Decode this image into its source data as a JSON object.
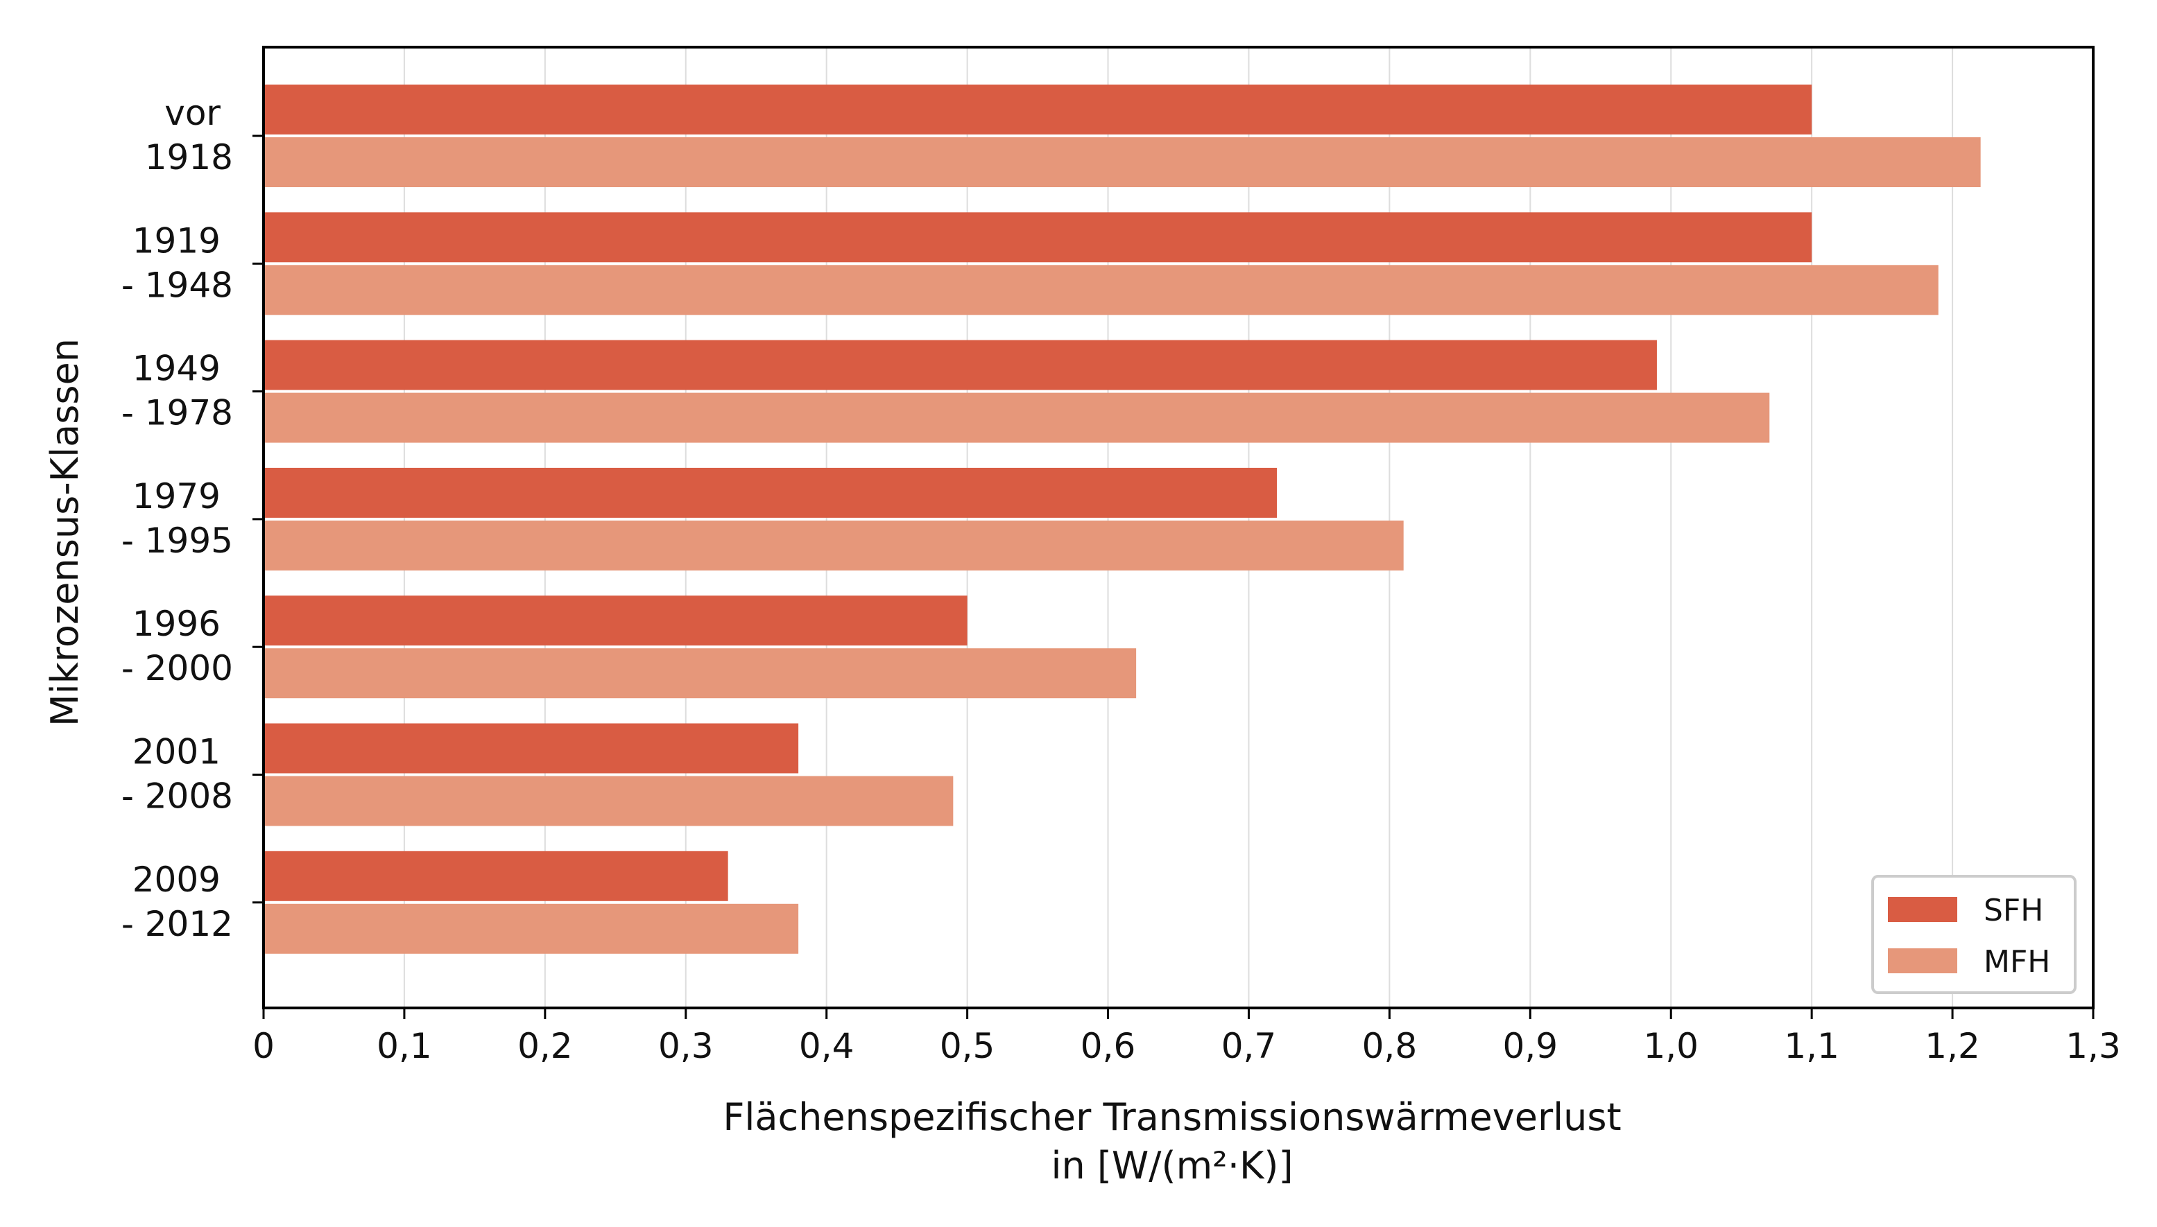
{
  "chart_data": {
    "type": "bar",
    "orientation": "horizontal",
    "categories": [
      [
        "vor",
        "1918"
      ],
      [
        "1919",
        "- 1948"
      ],
      [
        "1949",
        "- 1978"
      ],
      [
        "1979",
        "- 1995"
      ],
      [
        "1996",
        "- 2000"
      ],
      [
        "2001",
        "- 2008"
      ],
      [
        "2009",
        "- 2012"
      ]
    ],
    "series": [
      {
        "name": "SFH",
        "color": "#d95c43",
        "values": [
          1.1,
          1.1,
          0.99,
          0.72,
          0.5,
          0.38,
          0.33
        ]
      },
      {
        "name": "MFH",
        "color": "#e6977a",
        "values": [
          1.22,
          1.19,
          1.07,
          0.81,
          0.62,
          0.49,
          0.38
        ]
      }
    ],
    "xlim": [
      0,
      1.3
    ],
    "x_ticks": [
      0,
      0.1,
      0.2,
      0.3,
      0.4,
      0.5,
      0.6,
      0.7,
      0.8,
      0.9,
      1.0,
      1.1,
      1.2,
      1.3
    ],
    "x_tick_labels": [
      "0",
      "0,1",
      "0,2",
      "0,3",
      "0,4",
      "0,5",
      "0,6",
      "0,7",
      "0,8",
      "0,9",
      "1,0",
      "1,1",
      "1,2",
      "1,3"
    ],
    "xlabel": [
      "Flächenspezifischer Transmissionswärmeverlust",
      "in [W/(m²·K)]"
    ],
    "ylabel": "Mikrozensus-Klassen",
    "grid": "vertical",
    "legend_position": "bottom-right"
  }
}
